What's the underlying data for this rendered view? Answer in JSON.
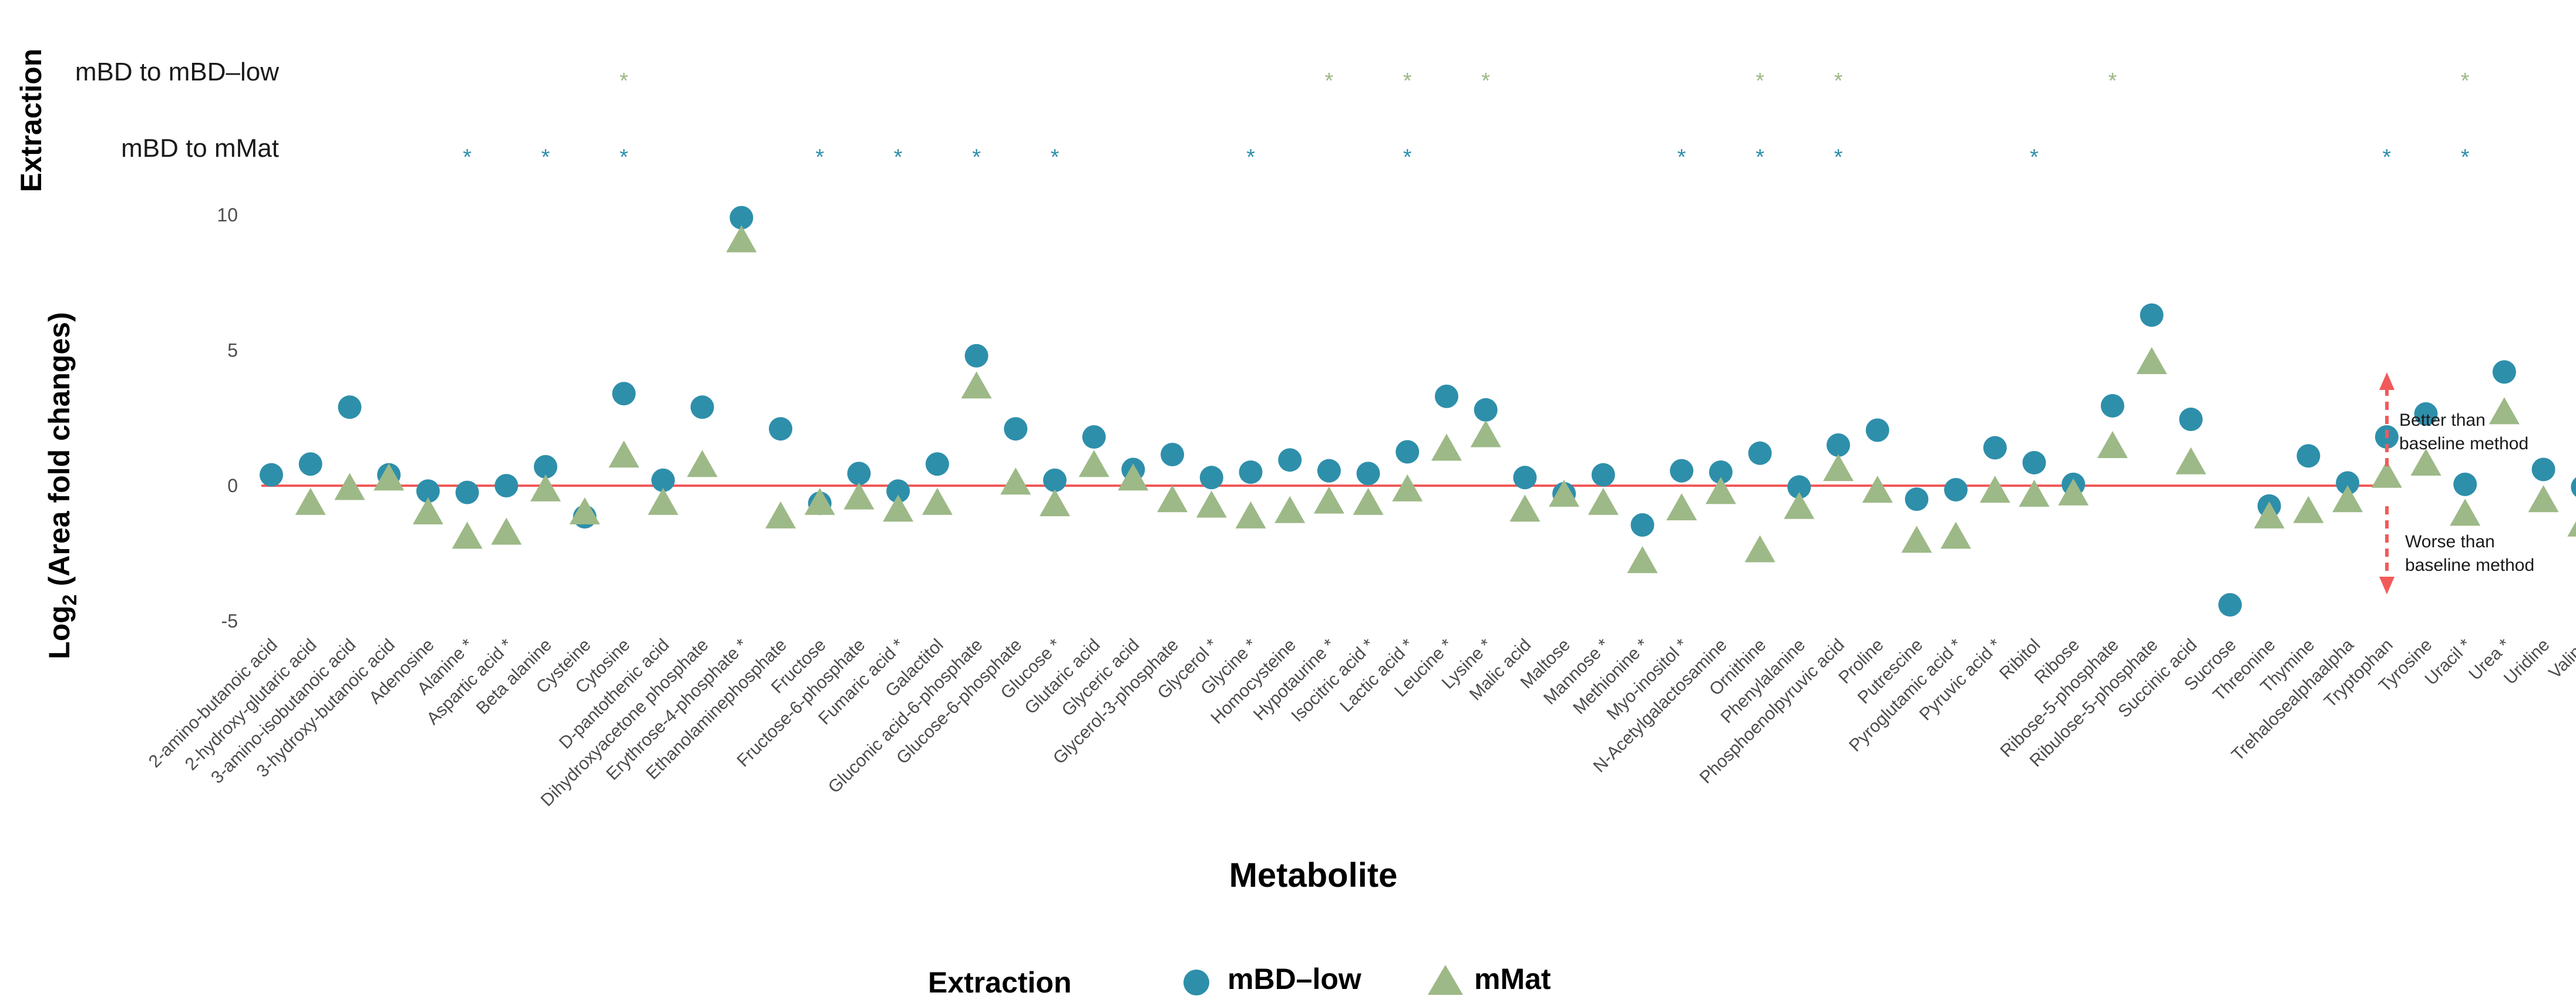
{
  "chart_data": {
    "type": "scatter",
    "title": "",
    "xlabel": "Metabolite",
    "ylabel": "Log₂ (Area fold changes)",
    "yticks": [
      -5,
      0,
      5,
      10
    ],
    "ylim": [
      -5.5,
      10.5
    ],
    "reference_line": 0,
    "categories": [
      "2-amino-butanoic acid",
      "2-hydroxy-glutaric acid",
      "3-amino-isobutanoic acid",
      "3-hydroxy-butanoic acid",
      "Adenosine",
      "Alanine *",
      "Aspartic acid *",
      "Beta alanine",
      "Cysteine",
      "Cytosine",
      "D-pantothenic acid",
      "Dihydroxyacetone phosphate",
      "Erythrose-4-phosphate *",
      "Ethanolaminephosphate",
      "Fructose",
      "Fructose-6-phosphate",
      "Fumaric acid *",
      "Galactitol",
      "Gluconic acid-6-phosphate",
      "Glucose-6-phosphate",
      "Glucose *",
      "Glutaric acid",
      "Glyceric acid",
      "Glycerol-3-phosphate",
      "Glycerol *",
      "Glycine *",
      "Homocysteine",
      "Hypotaurine *",
      "Isocitric acid *",
      "Lactic acid *",
      "Leucine *",
      "Lysine *",
      "Malic acid",
      "Maltose",
      "Mannose *",
      "Methionine *",
      "Myo-inositol *",
      "N-Acetylgalactosamine",
      "Ornithine",
      "Phenylalanine",
      "Phosphoenolpyruvic acid",
      "Proline",
      "Putrescine",
      "Pyroglutamic acid *",
      "Pyruvic acid *",
      "Ribitol",
      "Ribose",
      "Ribose-5-phosphate",
      "Ribulose-5-phosphate",
      "Succinic acid",
      "Sucrose",
      "Threonine",
      "Thymine",
      "Trehalosealphaalpha",
      "Tryptophan",
      "Tyrosine",
      "Uracil *",
      "Urea *",
      "Uridine",
      "Valine"
    ],
    "series": [
      {
        "name": "mBD–low",
        "color": "#2e8fab",
        "marker": "circle",
        "values": [
          0.4,
          0.8,
          2.9,
          0.4,
          -0.2,
          -0.25,
          0.0,
          0.7,
          -1.15,
          3.4,
          0.2,
          2.9,
          9.9,
          2.1,
          -0.65,
          0.45,
          -0.2,
          0.8,
          4.8,
          2.1,
          0.2,
          1.8,
          0.6,
          1.15,
          0.3,
          0.5,
          0.95,
          0.55,
          0.45,
          1.25,
          3.3,
          2.8,
          0.3,
          -0.3,
          0.4,
          -1.45,
          0.55,
          0.5,
          1.2,
          -0.05,
          1.5,
          2.05,
          -0.5,
          -0.15,
          1.4,
          0.85,
          0.05,
          2.95,
          6.3,
          2.45,
          -4.4,
          -0.75,
          1.1,
          0.1,
          1.8,
          2.65,
          0.05,
          4.2,
          0.6,
          -0.05
        ]
      },
      {
        "name": "mMat",
        "color": "#9db987",
        "marker": "triangle",
        "values": [
          null,
          -0.7,
          -0.15,
          0.2,
          -1.05,
          -1.95,
          -1.8,
          -0.2,
          -1.05,
          1.05,
          -0.7,
          0.7,
          9.0,
          -1.2,
          -0.7,
          -0.5,
          -0.95,
          -0.7,
          3.6,
          0.05,
          -0.75,
          0.7,
          0.2,
          -0.6,
          -0.8,
          -1.2,
          -1.0,
          -0.65,
          -0.7,
          -0.2,
          1.3,
          1.8,
          -0.95,
          -0.4,
          -0.7,
          -2.85,
          -0.9,
          -0.3,
          -2.45,
          -0.85,
          0.55,
          -0.25,
          -2.1,
          -1.95,
          -0.25,
          -0.4,
          -0.35,
          1.4,
          4.5,
          0.8,
          null,
          -1.2,
          -1.0,
          -0.6,
          0.3,
          0.75,
          -1.1,
          2.65,
          -0.6,
          -1.5
        ]
      }
    ],
    "significance": {
      "title": "Extraction",
      "rows": [
        {
          "label": "mBD to mBD–low",
          "color": "#9db987",
          "marker": "*",
          "categories": [
            "Cytosine",
            "Hypotaurine *",
            "Lactic acid *",
            "Lysine *",
            "Ornithine",
            "Phosphoenolpyruvic acid",
            "Ribose-5-phosphate",
            "Uracil *"
          ]
        },
        {
          "label": "mBD to mMat",
          "color": "#2e8fab",
          "marker": "*",
          "categories": [
            "Alanine *",
            "Beta alanine",
            "Cytosine",
            "Fructose",
            "Fumaric acid *",
            "Gluconic acid-6-phosphate",
            "Glucose *",
            "Glycine *",
            "Lactic acid *",
            "Myo-inositol *",
            "Ornithine",
            "Phosphoenolpyruvic acid",
            "Ribitol",
            "Tryptophan",
            "Uracil *"
          ]
        }
      ]
    },
    "annotations": {
      "better": [
        "Better than",
        "baseline method"
      ],
      "worse": [
        "Worse than",
        "baseline method"
      ]
    },
    "legend": {
      "title": "Extraction",
      "position": "bottom",
      "entries": [
        "mBD–low",
        "mMat"
      ]
    },
    "colors": {
      "reference_line": "#f25a5a",
      "arrow": "#f25a5a"
    }
  }
}
